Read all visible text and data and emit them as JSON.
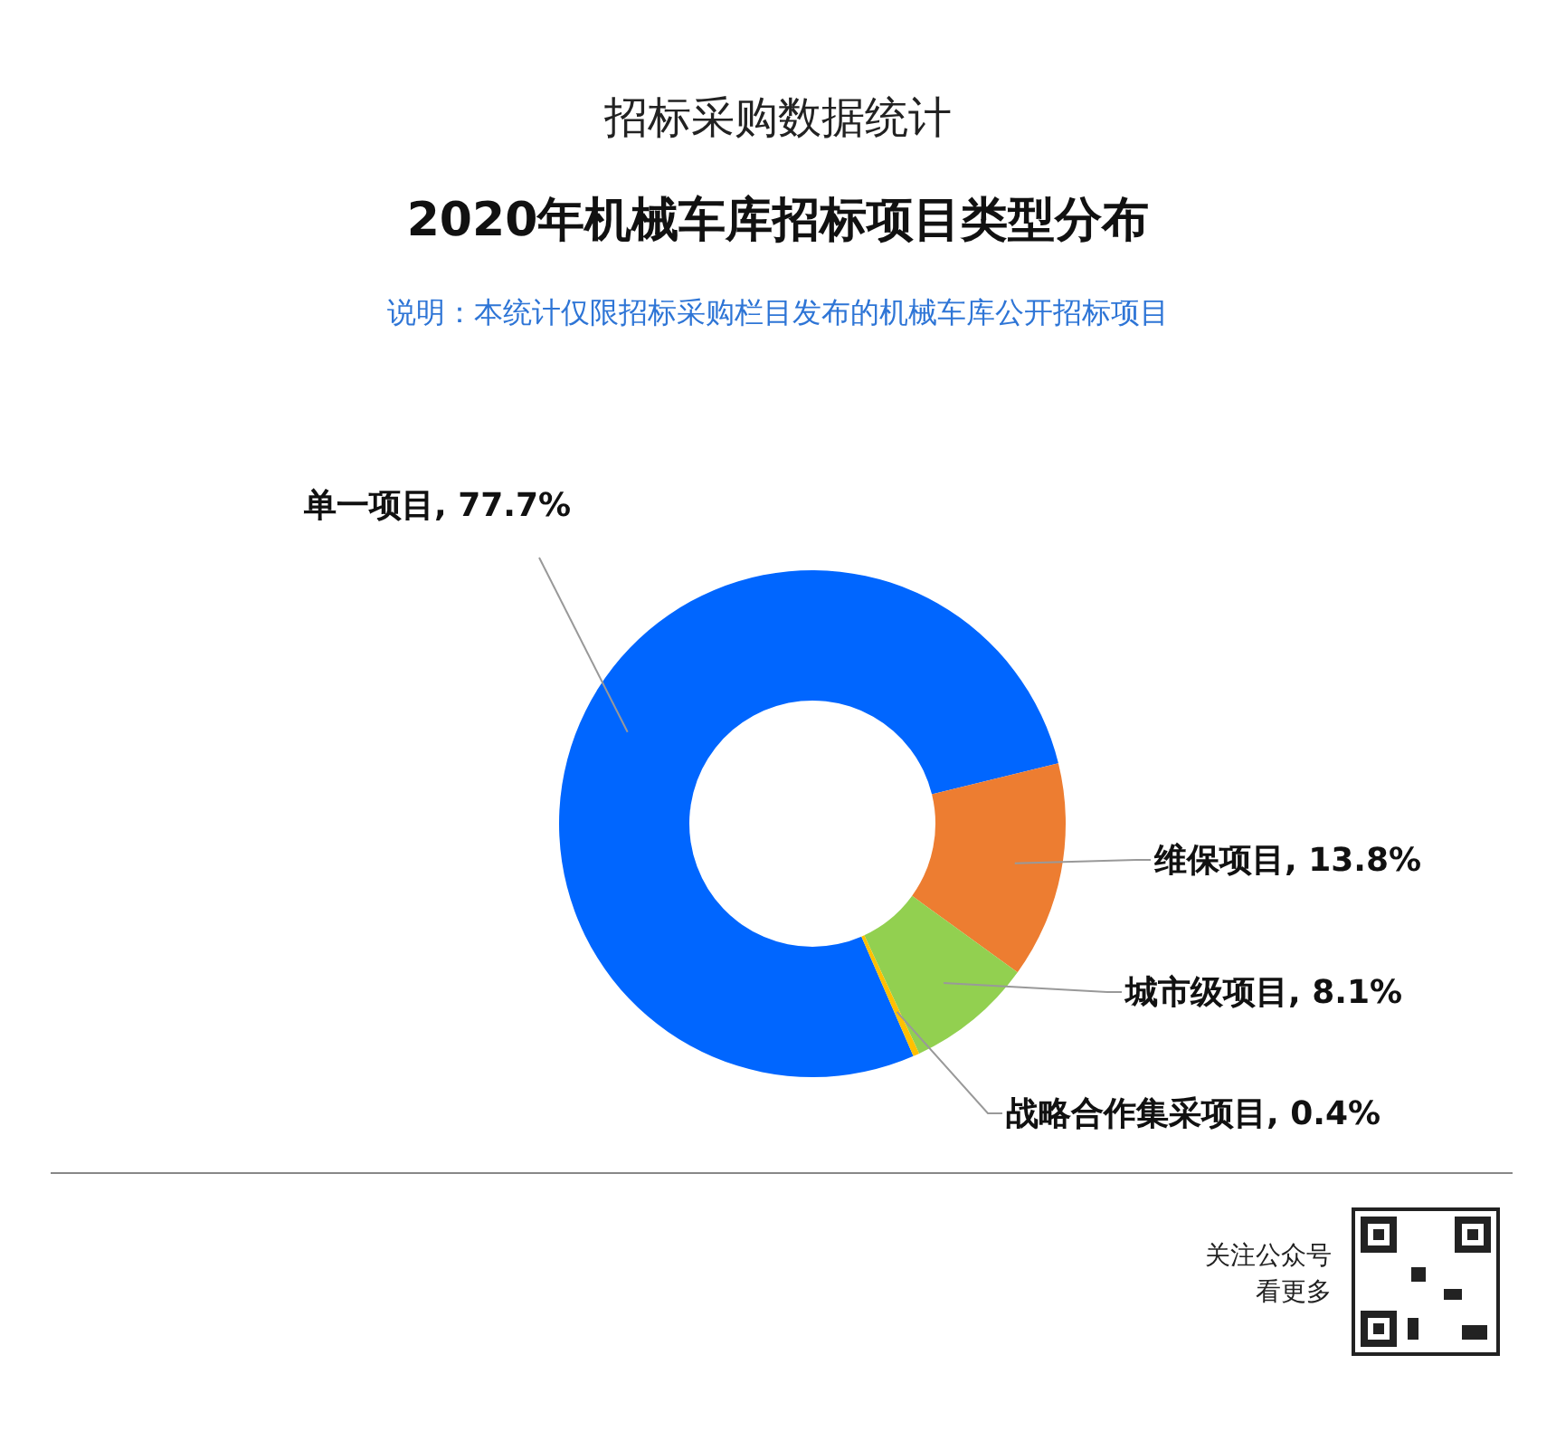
{
  "chart_data": {
    "type": "donut",
    "title": "招标采购数据统计",
    "subtitle": "2020年机械车库招标项目类型分布",
    "annotations": [
      "说明：本统计仅限招标采购栏目发布的机械车库公开招标项目",
      "关注公众号",
      "看更多"
    ],
    "categories": [
      "单一项目",
      "维保项目",
      "城市级项目",
      "战略合作集采项目"
    ],
    "values": [
      77.7,
      13.8,
      8.1,
      0.4
    ],
    "value_labels": [
      "77.7%",
      "13.8%",
      "8.1%",
      "0.4%"
    ],
    "colors": [
      "#0066ff",
      "#ed7d31",
      "#92d050",
      "#ffc000"
    ]
  }
}
